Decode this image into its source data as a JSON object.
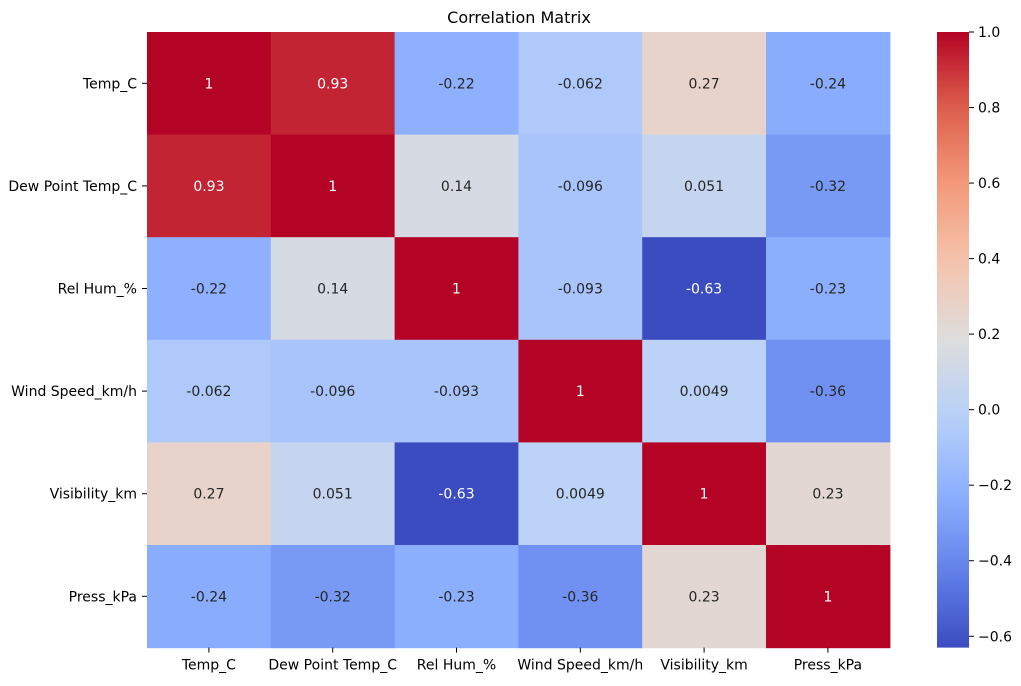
{
  "chart_data": {
    "type": "heatmap",
    "title": "Correlation Matrix",
    "xlabel": "",
    "ylabel": "",
    "x_categories": [
      "Temp_C",
      "Dew Point Temp_C",
      "Rel Hum_%",
      "Wind Speed_km/h",
      "Visibility_km",
      "Press_kPa"
    ],
    "y_categories": [
      "Temp_C",
      "Dew Point Temp_C",
      "Rel Hum_%",
      "Wind Speed_km/h",
      "Visibility_km",
      "Press_kPa"
    ],
    "values": [
      [
        1,
        0.93,
        -0.22,
        -0.062,
        0.27,
        -0.24
      ],
      [
        0.93,
        1,
        0.14,
        -0.096,
        0.051,
        -0.32
      ],
      [
        -0.22,
        0.14,
        1,
        -0.093,
        -0.63,
        -0.23
      ],
      [
        -0.062,
        -0.096,
        -0.093,
        1,
        0.0049,
        -0.36
      ],
      [
        0.27,
        0.051,
        -0.63,
        0.0049,
        1,
        0.23
      ],
      [
        -0.24,
        -0.32,
        -0.23,
        -0.36,
        0.23,
        1
      ]
    ],
    "annotations": [
      [
        "1",
        "0.93",
        "-0.22",
        "-0.062",
        "0.27",
        "-0.24"
      ],
      [
        "0.93",
        "1",
        "0.14",
        "-0.096",
        "0.051",
        "-0.32"
      ],
      [
        "-0.22",
        "0.14",
        "1",
        "-0.093",
        "-0.63",
        "-0.23"
      ],
      [
        "-0.062",
        "-0.096",
        "-0.093",
        "1",
        "0.0049",
        "-0.36"
      ],
      [
        "0.27",
        "0.051",
        "-0.63",
        "0.0049",
        "1",
        "0.23"
      ],
      [
        "-0.24",
        "-0.32",
        "-0.23",
        "-0.36",
        "0.23",
        "1"
      ]
    ],
    "colormap": "coolwarm",
    "vmin": -0.63,
    "vmax": 1,
    "colorbar": {
      "ticks": [
        1.0,
        0.8,
        0.6,
        0.4,
        0.2,
        0.0,
        -0.2,
        -0.4,
        -0.6
      ],
      "tick_labels": [
        "1.0",
        "0.8",
        "0.6",
        "0.4",
        "0.2",
        "0.0",
        "−0.2",
        "−0.4",
        "−0.6"
      ],
      "placement": "right"
    }
  }
}
